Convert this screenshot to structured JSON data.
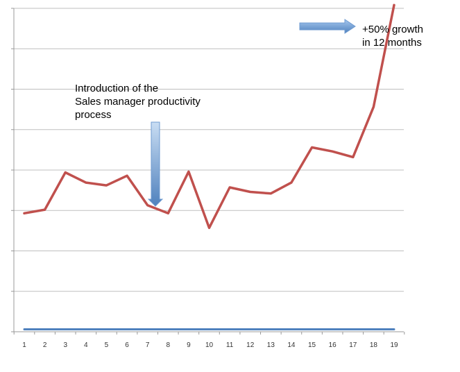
{
  "chart_data": {
    "type": "line",
    "title": "",
    "xlabel": "",
    "ylabel": "",
    "x": [
      1,
      2,
      3,
      4,
      5,
      6,
      7,
      8,
      9,
      10,
      11,
      12,
      13,
      14,
      15,
      16,
      17,
      18,
      19
    ],
    "tick_labels": [
      "1",
      "2",
      "3",
      "4",
      "5",
      "6",
      "7",
      "8",
      "9",
      "10",
      "11",
      "12",
      "13",
      "14",
      "15",
      "16",
      "17",
      "18",
      "19"
    ],
    "ylim": [
      0,
      8
    ],
    "y_tick_count": 9,
    "grid": true,
    "y_tick_labels_visible": false,
    "legend": "none",
    "series": [
      {
        "values": [
          2.93,
          3.02,
          3.94,
          3.69,
          3.62,
          3.86,
          3.13,
          2.93,
          3.96,
          2.57,
          3.57,
          3.46,
          3.42,
          3.69,
          4.56,
          4.46,
          4.32,
          5.56,
          8.08
        ],
        "color": "#c0504d"
      },
      {
        "values": [
          0.06,
          0.06,
          0.06,
          0.06,
          0.06,
          0.06,
          0.06,
          0.06,
          0.06,
          0.06,
          0.06,
          0.06,
          0.06,
          0.06,
          0.06,
          0.06,
          0.06,
          0.06,
          0.06
        ],
        "color": "#4f81bd"
      }
    ],
    "annotations": [
      {
        "lines": [
          "Introduction of the",
          "Sales manager productivity",
          "process"
        ],
        "arrow": "down",
        "arrow_color": "#4f81bd"
      },
      {
        "lines": [
          "+50% growth",
          "in 12  months"
        ],
        "arrow": "right",
        "arrow_color": "#4f81bd"
      }
    ],
    "grid_color": "#bfbfbf",
    "axis_color": "#999999"
  }
}
